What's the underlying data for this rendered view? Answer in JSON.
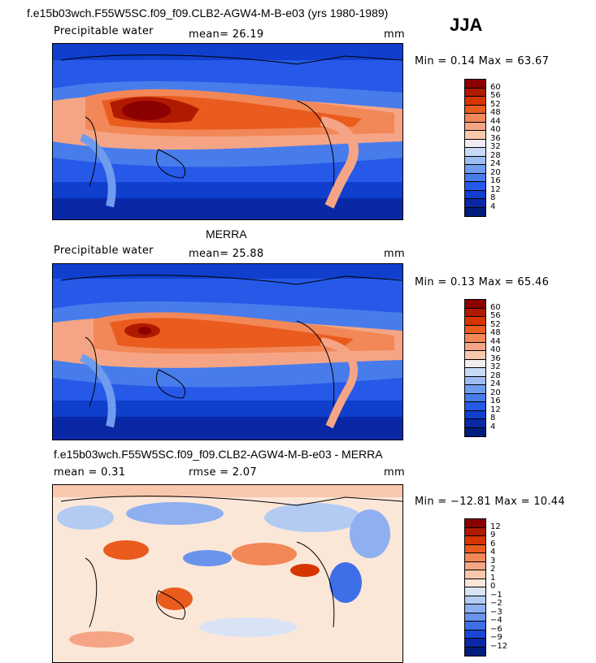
{
  "season": "JJA",
  "panels": [
    {
      "title": "f.e15b03wch.F55W5SC.f09_f09.CLB2-AGW4-M-B-e03 (yrs 1980-1989)",
      "variable": "Precipitable water",
      "mean_text": "mean=   26.19",
      "units": "mm",
      "minmax_text": "Min =    0.14 Max =  63.67",
      "levels": [
        "60",
        "56",
        "52",
        "48",
        "44",
        "40",
        "36",
        "32",
        "28",
        "24",
        "20",
        "16",
        "12",
        "8",
        "4"
      ],
      "colors": [
        "#8b0000",
        "#b01a00",
        "#d63500",
        "#e95c1e",
        "#f28758",
        "#f5a585",
        "#f8c8ad",
        "#f2ecf0",
        "#c7d9f4",
        "#9dbcf1",
        "#6f9cef",
        "#487ceb",
        "#2659e8",
        "#0f3fcc",
        "#0a28a6",
        "#001d7e"
      ]
    },
    {
      "title": "MERRA",
      "variable": "Precipitable water",
      "mean_text": "mean=   25.88",
      "units": "mm",
      "minmax_text": "Min =    0.13 Max =  65.46",
      "levels": [
        "60",
        "56",
        "52",
        "48",
        "44",
        "40",
        "36",
        "32",
        "28",
        "24",
        "20",
        "16",
        "12",
        "8",
        "4"
      ],
      "colors": [
        "#8b0000",
        "#b01a00",
        "#d63500",
        "#e95c1e",
        "#f28758",
        "#f5a585",
        "#f8c8ad",
        "#f2ecf0",
        "#c7d9f4",
        "#9dbcf1",
        "#6f9cef",
        "#487ceb",
        "#2659e8",
        "#0f3fcc",
        "#0a28a6",
        "#001d7e"
      ]
    },
    {
      "title": "f.e15b03wch.F55W5SC.f09_f09.CLB2-AGW4-M-B-e03 - MERRA",
      "mean_text": "mean =    0.31",
      "rmse_text": "rmse =    2.07",
      "units": "mm",
      "minmax_text": "Min = −12.81 Max =  10.44",
      "levels": [
        "12",
        "9",
        "6",
        "4",
        "3",
        "2",
        "1",
        "0",
        "−1",
        "−2",
        "−3",
        "−4",
        "−6",
        "−9",
        "−12"
      ],
      "colors": [
        "#8b0000",
        "#b01a00",
        "#d63500",
        "#e95c1e",
        "#f28758",
        "#f5a585",
        "#f8c8ad",
        "#fbe7d8",
        "#d8e4f6",
        "#b3cbf3",
        "#8eb0f0",
        "#6a93ec",
        "#3f6fe8",
        "#1a46d6",
        "#0a28a6",
        "#001d7e"
      ]
    }
  ]
}
